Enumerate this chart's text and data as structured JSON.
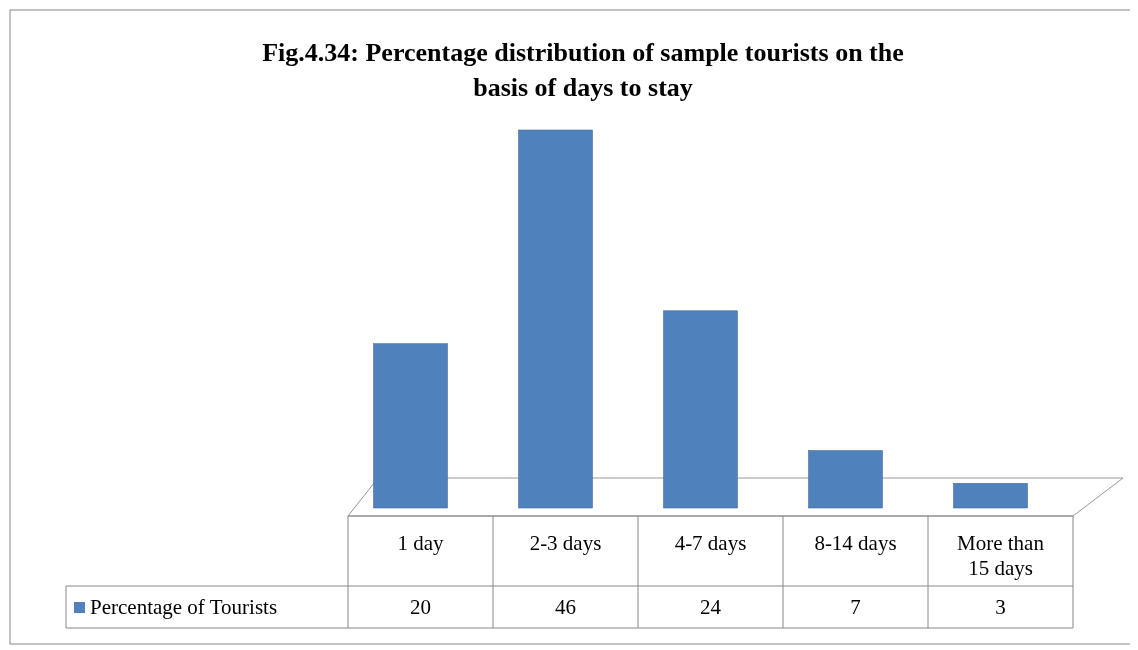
{
  "chart_data": {
    "type": "bar",
    "title": "Fig.4.34: Percentage distribution of sample tourists on the basis of days to stay",
    "categories": [
      "1 day",
      "2-3 days",
      "4-7 days",
      "8-14 days",
      "More than 15 days"
    ],
    "series": [
      {
        "name": "Percentage  of Tourists",
        "color": "#4f81bd",
        "values": [
          20,
          46,
          24,
          7,
          3
        ]
      }
    ],
    "data_labels": true,
    "legend": "bottom"
  }
}
